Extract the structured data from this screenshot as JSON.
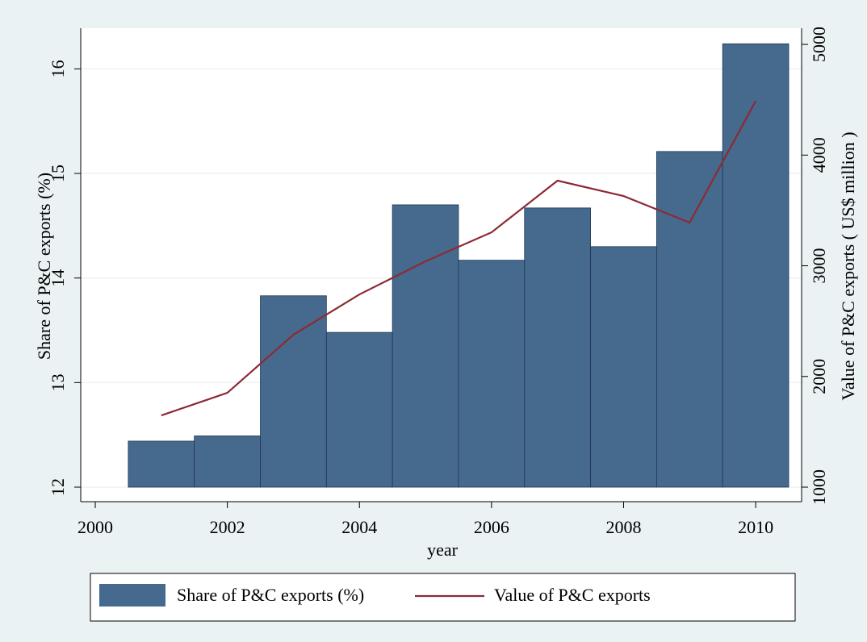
{
  "chart_data": {
    "type": "bar_line",
    "x_label": "year",
    "y_label": "Share of P&C  exports (%)",
    "y2_label": "Value of P&C  exports ( US$ million )",
    "x": [
      2001,
      2002,
      2003,
      2004,
      2005,
      2006,
      2007,
      2008,
      2009,
      2010
    ],
    "series": [
      {
        "name": "Share of P&C  exports (%)",
        "kind": "bar",
        "color": "#466a8e",
        "values": [
          12.44,
          12.49,
          13.83,
          13.48,
          14.7,
          14.17,
          14.67,
          14.3,
          15.21,
          16.24
        ]
      },
      {
        "name": "Value of P&C  exports",
        "kind": "line",
        "axis": "y2",
        "color": "#8c2a35",
        "values": [
          1648,
          1852,
          2377,
          2741,
          3040,
          3302,
          3769,
          3630,
          3390,
          4488
        ]
      }
    ],
    "xlim": [
      2000,
      2010.5
    ],
    "xticks": [
      2000,
      2002,
      2004,
      2006,
      2008,
      2010
    ],
    "ylim": [
      12,
      16.25
    ],
    "yticks": [
      12,
      13,
      14,
      15,
      16
    ],
    "y2lim": [
      1000,
      5015
    ],
    "y2ticks": [
      1000,
      2000,
      3000,
      4000,
      5000
    ],
    "grid": true,
    "legend": "bottom"
  }
}
